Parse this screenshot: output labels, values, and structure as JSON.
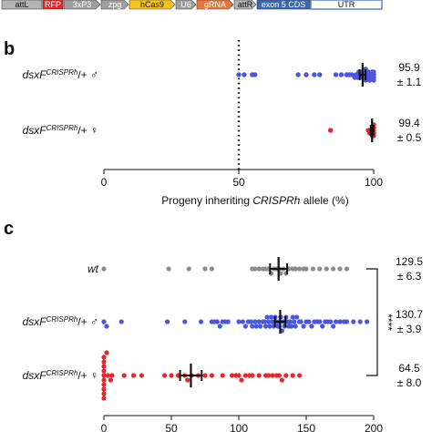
{
  "construct": {
    "segments": [
      {
        "label": "attL",
        "color": "#b3b3b3",
        "text": "dark"
      },
      {
        "label": "RFP",
        "color": "#e8262b",
        "text": "light"
      },
      {
        "label": "3xP3",
        "color": "#9e9e9e",
        "text": "light"
      },
      {
        "label": "zpg",
        "color": "#9e9e9e",
        "text": "light"
      },
      {
        "label": "hCas9",
        "color": "#f7c21a",
        "text": "dark"
      },
      {
        "label": "U6",
        "color": "#9e9e9e",
        "text": "light"
      },
      {
        "label": "gRNA",
        "color": "#e8763a",
        "text": "light"
      },
      {
        "label": "attR",
        "color": "#b3b3b3",
        "text": "dark"
      },
      {
        "label": "exon 5 CDS",
        "color": "#3b66b0",
        "text": "light"
      },
      {
        "label": "UTR",
        "color": "#ffffff",
        "text": "dark"
      }
    ]
  },
  "chart_data": [
    {
      "panel": "b",
      "type": "scatter",
      "xlabel_prefix": "Progeny inheriting ",
      "xlabel_italic": "CRISPRh",
      "xlabel_suffix": " allele (%)",
      "xlim": [
        0,
        100
      ],
      "xticks": [
        0,
        50,
        100
      ],
      "reference_line": 50,
      "rows": [
        {
          "label_main": "dsxF",
          "label_sup": "CRISPRh",
          "label_tail": "/+ ♂",
          "color": "#4a55e0",
          "mean": 95.9,
          "error": 1.1,
          "stat_line1": "95.9",
          "stat_line2": "± 1.1",
          "values": [
            50,
            52,
            55,
            56,
            72,
            75,
            78,
            80,
            86,
            88,
            90,
            91,
            92,
            93,
            93.5,
            94,
            94.5,
            95,
            95,
            95.5,
            96,
            96,
            96.5,
            97,
            97,
            97.5,
            98,
            98,
            98.5,
            99,
            99,
            99.5,
            100,
            100,
            100,
            100
          ]
        },
        {
          "label_main": "dsxF",
          "label_sup": "CRISPRh",
          "label_tail": "/+ ♀",
          "color": "#e8262b",
          "mean": 99.4,
          "error": 0.5,
          "stat_line1": "99.4",
          "stat_line2": "± 0.5",
          "values": [
            84,
            98,
            98.5,
            99,
            99,
            99.5,
            99.5,
            100,
            100,
            100,
            100,
            100
          ]
        }
      ]
    },
    {
      "panel": "c",
      "type": "scatter",
      "xlim": [
        0,
        200
      ],
      "xticks": [
        0,
        50,
        100,
        150,
        200
      ],
      "significance": "****",
      "rows": [
        {
          "label_main": "wt",
          "label_sup": "",
          "label_tail": "",
          "color": "#8c8c8c",
          "mean": 129.5,
          "error": 6.3,
          "stat_line1": "129.5",
          "stat_line2": "± 6.3",
          "values": [
            0,
            48,
            63,
            75,
            80,
            110,
            112,
            115,
            118,
            120,
            122,
            124,
            126,
            128,
            130,
            131,
            133,
            135,
            137,
            140,
            142,
            145,
            148,
            150,
            155,
            160,
            165,
            170,
            175,
            180
          ]
        },
        {
          "label_main": "dsxF",
          "label_sup": "CRISPRh",
          "label_tail": "/+ ♂",
          "color": "#4a55e0",
          "mean": 130.7,
          "error": 3.9,
          "stat_line1": "130.7",
          "stat_line2": "± 3.9",
          "values": [
            0,
            2,
            13,
            47,
            60,
            72,
            80,
            82,
            84,
            86,
            88,
            90,
            92,
            100,
            103,
            105,
            107,
            109,
            110,
            112,
            113,
            115,
            116,
            118,
            119,
            120,
            121,
            122,
            123,
            124,
            125,
            126,
            127,
            128,
            129,
            130,
            130,
            131,
            132,
            133,
            134,
            135,
            136,
            137,
            138,
            139,
            140,
            141,
            142,
            143,
            145,
            146,
            148,
            150,
            152,
            154,
            156,
            158,
            160,
            162,
            164,
            166,
            168,
            170,
            172,
            175,
            178,
            180,
            185,
            190,
            195
          ]
        },
        {
          "label_main": "dsxF",
          "label_sup": "CRISPRh",
          "label_tail": "/+ ♀",
          "color": "#e8262b",
          "mean": 64.5,
          "error": 8.0,
          "stat_line1": "64.5",
          "stat_line2": "± 8.0",
          "values": [
            0,
            0,
            0,
            0,
            0,
            0,
            0,
            0,
            0,
            0,
            2,
            3,
            5,
            6,
            15,
            22,
            28,
            45,
            50,
            55,
            60,
            62,
            65,
            70,
            75,
            80,
            88,
            95,
            98,
            100,
            102,
            105,
            108,
            110,
            115,
            120,
            122,
            125,
            128,
            130,
            132,
            135,
            140,
            145
          ]
        }
      ]
    }
  ]
}
